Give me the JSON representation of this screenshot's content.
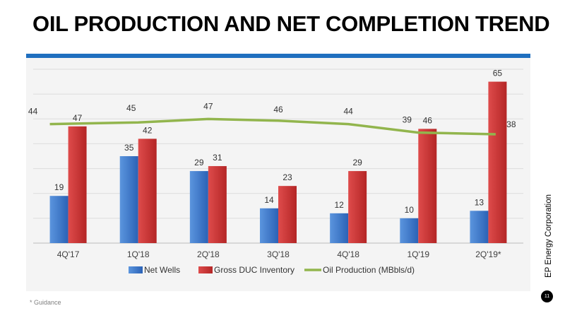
{
  "slide": {
    "title": "OIL PRODUCTION AND NET COMPLETION TREND",
    "footnote": "* Guidance",
    "company": "EP Energy Corporation",
    "page_number": "11"
  },
  "colors": {
    "accent_rule": "#1f6fbf",
    "net_wells": "#3b78cf",
    "gross_duc": "#cf3535",
    "oil_production": "#92b54d"
  },
  "chart_data": {
    "type": "bar",
    "categories": [
      "4Q'17",
      "1Q'18",
      "2Q'18",
      "3Q'18",
      "4Q'18",
      "1Q'19",
      "2Q'19*"
    ],
    "series": [
      {
        "name": "Net Wells",
        "type": "bar",
        "values": [
          19,
          35,
          29,
          14,
          12,
          10,
          13
        ]
      },
      {
        "name": "Gross DUC Inventory",
        "type": "bar",
        "values": [
          47,
          42,
          31,
          23,
          29,
          46,
          65
        ]
      },
      {
        "name": "Oil Production (MBbls/d)",
        "type": "line",
        "values": [
          44,
          45,
          47,
          46,
          44,
          39,
          38
        ]
      }
    ],
    "ylim": [
      0,
      70
    ],
    "grid": true,
    "legend_position": "bottom"
  }
}
